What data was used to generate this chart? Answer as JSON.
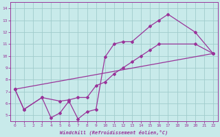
{
  "bg_color": "#c8eaea",
  "line_color": "#993399",
  "grid_color": "#a0cccc",
  "xlabel": "Windchill (Refroidissement éolien,°C)",
  "xlim": [
    -0.5,
    22.5
  ],
  "ylim": [
    4.5,
    14.5
  ],
  "yticks": [
    5,
    6,
    7,
    8,
    9,
    10,
    11,
    12,
    13,
    14
  ],
  "xticks": [
    0,
    1,
    2,
    3,
    4,
    5,
    6,
    7,
    8,
    9,
    10,
    11,
    12,
    13,
    14,
    15,
    16,
    17,
    18,
    19,
    20,
    21,
    22
  ],
  "line1_x": [
    0,
    1,
    3,
    4,
    5,
    6,
    7,
    8,
    9,
    10,
    11,
    12,
    13,
    15,
    16,
    17,
    20,
    22
  ],
  "line1_y": [
    7.2,
    5.5,
    6.5,
    4.8,
    5.2,
    6.2,
    4.7,
    5.3,
    5.5,
    9.9,
    11.0,
    11.2,
    11.2,
    12.5,
    13.0,
    13.5,
    12.0,
    10.2
  ],
  "line2_x": [
    0,
    1,
    3,
    5,
    6,
    7,
    8,
    9,
    10,
    11,
    12,
    13,
    14,
    15,
    16,
    20,
    22
  ],
  "line2_y": [
    7.2,
    5.5,
    6.5,
    6.2,
    6.3,
    6.5,
    6.5,
    7.5,
    7.8,
    8.5,
    9.0,
    9.5,
    10.0,
    10.5,
    11.0,
    11.0,
    10.2
  ],
  "line3_x": [
    0,
    22
  ],
  "line3_y": [
    7.2,
    10.2
  ]
}
